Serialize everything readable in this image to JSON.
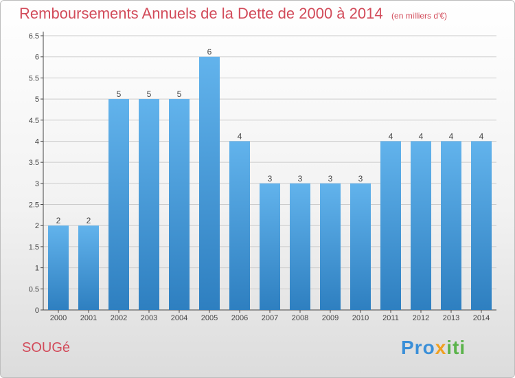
{
  "header": {
    "title": "Remboursements Annuels de la Dette de 2000 à 2014",
    "subtitle": "(en milliers d'€)"
  },
  "footer": {
    "commune": "SOUGé",
    "logo": [
      "Pro",
      "x",
      "iti"
    ]
  },
  "colors": {
    "title": "#d24b5a",
    "bar_top": "#62b3ec",
    "bar_bottom": "#2e7fc0",
    "grid": "#cccccc"
  },
  "chart_data": {
    "type": "bar",
    "title": "Remboursements Annuels de la Dette de 2000 à 2014",
    "subtitle": "(en milliers d'€)",
    "categories": [
      "2000",
      "2001",
      "2002",
      "2003",
      "2004",
      "2005",
      "2006",
      "2007",
      "2008",
      "2009",
      "2010",
      "2011",
      "2012",
      "2013",
      "2014"
    ],
    "values": [
      2,
      2,
      5,
      5,
      5,
      6,
      4,
      3,
      3,
      3,
      3,
      4,
      4,
      4,
      4
    ],
    "data_labels": [
      "2",
      "2",
      "5",
      "5",
      "5",
      "6",
      "4",
      "3",
      "3",
      "3",
      "3",
      "4",
      "4",
      "4",
      "4"
    ],
    "yticks": [
      "0",
      "0.5",
      "1",
      "1.5",
      "2",
      "2.5",
      "3",
      "3.5",
      "4",
      "4.5",
      "5",
      "5.5",
      "6",
      "6.5"
    ],
    "ylim": [
      0,
      6.5
    ],
    "grid": true,
    "legend": "none"
  }
}
